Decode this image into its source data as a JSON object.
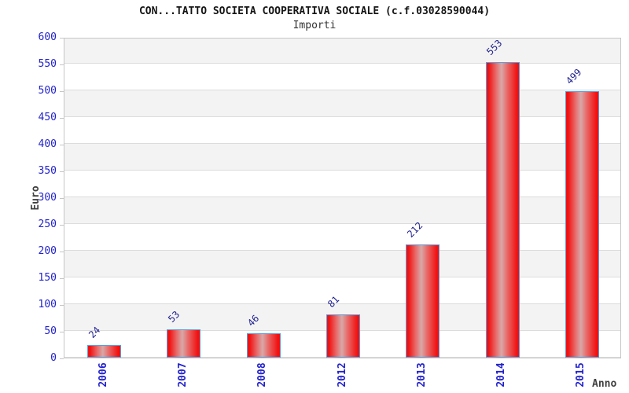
{
  "chart_data": {
    "type": "bar",
    "title": "CON...TATTO SOCIETA COOPERATIVA SOCIALE (c.f.03028590044)",
    "subtitle": "Importi",
    "xlabel": "Anno",
    "ylabel": "Euro",
    "categories": [
      "2006",
      "2007",
      "2008",
      "2012",
      "2013",
      "2014",
      "2015"
    ],
    "values": [
      24,
      53,
      46,
      81,
      212,
      553,
      499
    ],
    "ylim": [
      0,
      600
    ],
    "y_ticks": [
      0,
      50,
      100,
      150,
      200,
      250,
      300,
      350,
      400,
      450,
      500,
      550,
      600
    ],
    "grid": "horizontal alternating bands every 50, light gridlines",
    "legend": "none",
    "colors": {
      "bar_main": "#f01212",
      "bar_mid": "#e96868",
      "bar_highlight": "#d8a8a8",
      "bar_border": "#55a0e0",
      "tick_label": "#2222cc",
      "value_label": "#222290",
      "axis_label": "#404040",
      "band_gray": "#f3f3f3",
      "plot_border": "#c6c6c6"
    }
  }
}
